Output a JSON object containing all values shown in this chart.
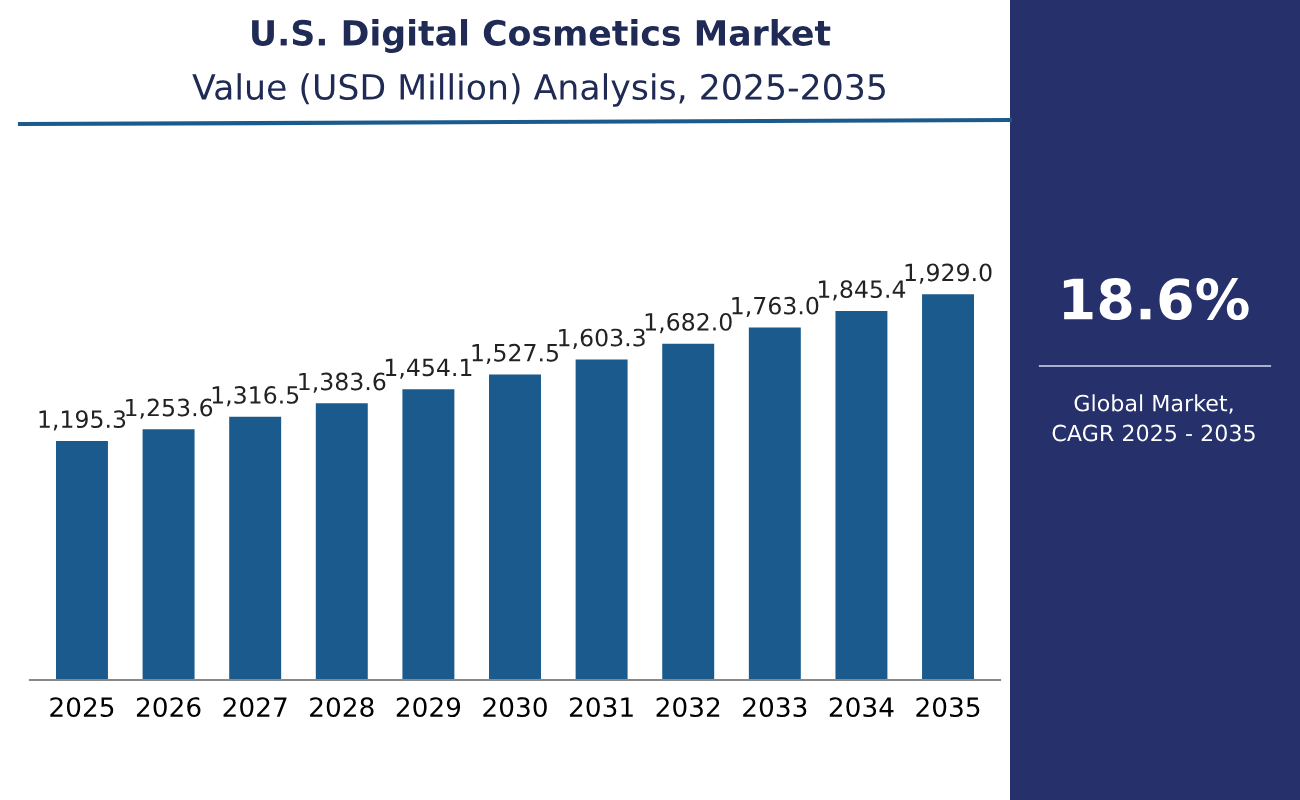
{
  "chart_data": {
    "type": "bar",
    "title": "U.S. Digital Cosmetics Market",
    "subtitle": "Value (USD Million) Analysis, 2025-2035",
    "categories": [
      "2025",
      "2026",
      "2027",
      "2028",
      "2029",
      "2030",
      "2031",
      "2032",
      "2033",
      "2034",
      "2035"
    ],
    "values": [
      1195.3,
      1253.6,
      1316.5,
      1383.6,
      1454.1,
      1527.5,
      1603.3,
      1682.0,
      1763.0,
      1845.4,
      1929.0
    ],
    "value_labels": [
      "1,195.3",
      "1,253.6",
      "1,316.5",
      "1,383.6",
      "1,454.1",
      "1,527.5",
      "1,603.3",
      "1,682.0",
      "1,763.0",
      "1,845.4",
      "1,929.0"
    ],
    "color": "#1b5a8c",
    "grid": false,
    "legend": false,
    "annotations": [
      "18.6%",
      "Global Market, CAGR 2025 - 2035"
    ]
  }
}
